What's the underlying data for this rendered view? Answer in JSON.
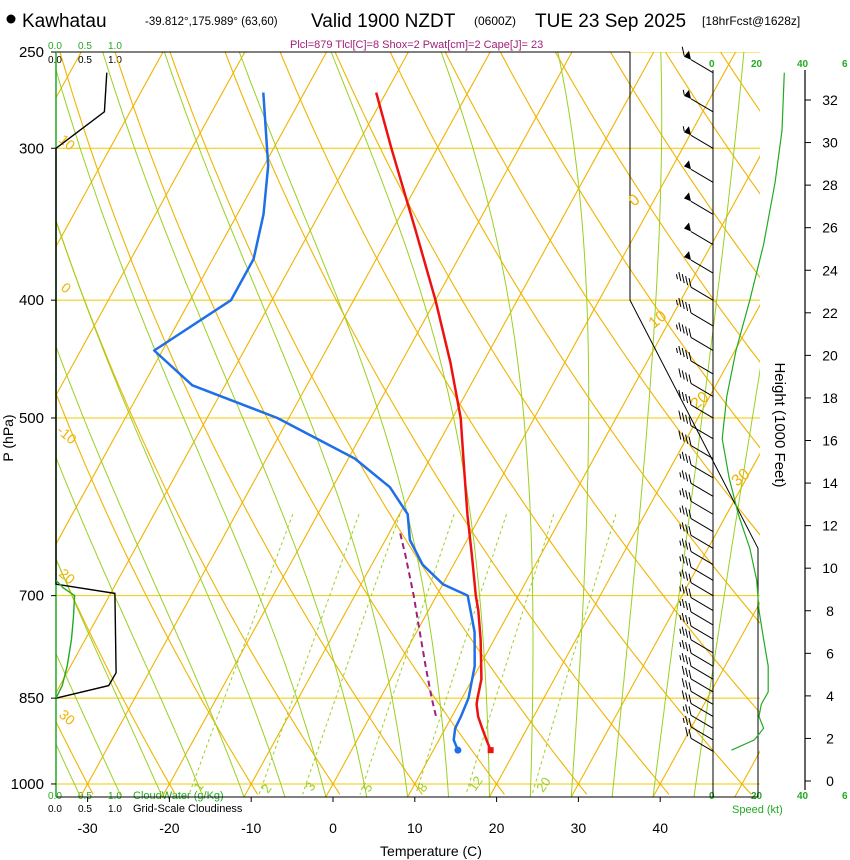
{
  "header": {
    "station": "Kawhatau",
    "coords": "-39.812°,175.989° (63,60)",
    "valid_prefix": "Valid 1900 NZDT",
    "utc": "(0600Z)",
    "date": "TUE 23 Sep 2025",
    "forecast": "[18hrFcst@1628z]",
    "indices": "Plcl=879 Tlcl[C]=8 Shox=2 Pwat[cm]=2 Cape[J]= 23"
  },
  "colors": {
    "temperature": "#ee1111",
    "dewpoint": "#1f6fe8",
    "isotherm": "#f0b400",
    "dry_adiabat": "#f0b400",
    "moist_adiabat": "#9ad022",
    "mixing_ratio": "#9ad022",
    "isobar": "#f0c800",
    "cloudwater": "#22aa22",
    "parcel": "#a0207a"
  },
  "chart_data": {
    "type": "line",
    "title": "Kawhatau Valid 1900 NZDT (0600Z) TUE 23 Sep 2025",
    "xlabel": "Temperature (C)",
    "ylabel": "P (hPa)",
    "y2label": "Height (1000 Feet)",
    "xlim": [
      -35,
      47
    ],
    "ylim": [
      1025,
      250
    ],
    "y_scale": "log",
    "skewed": true,
    "x_ticks": [
      -30,
      -20,
      -10,
      0,
      10,
      20,
      30,
      40
    ],
    "pressure_ticks": [
      250,
      300,
      400,
      500,
      700,
      850,
      1000
    ],
    "height_ticks": [
      0,
      2,
      4,
      6,
      8,
      10,
      12,
      14,
      16,
      18,
      20,
      22,
      24,
      26,
      28,
      30,
      32
    ],
    "height_axis_label_values": [
      "0",
      "2",
      "4",
      "6",
      "8",
      "10",
      "12",
      "14",
      "16",
      "18",
      "20",
      "22",
      "24",
      "26",
      "28",
      "30",
      "32"
    ],
    "isotherm_labels": [
      {
        "text": "0",
        "value": 0
      },
      {
        "text": "10",
        "value": 10
      },
      {
        "text": "20",
        "value": 20
      },
      {
        "text": "30",
        "value": 30
      }
    ],
    "dry_adiabat_labels": [
      {
        "text": "10",
        "value": 10
      },
      {
        "text": "0",
        "value": 0
      },
      {
        "text": "-10",
        "value": -10
      },
      {
        "text": "20",
        "value": 20
      },
      {
        "text": "30",
        "value": 30
      }
    ],
    "mixing_ratio_labels": [
      "1",
      "2",
      "3",
      "5",
      "8",
      "12",
      "20"
    ],
    "series": [
      {
        "name": "Temperature",
        "points": [
          {
            "p": 938,
            "t": 17.0
          },
          {
            "p": 920,
            "t": 15.8
          },
          {
            "p": 900,
            "t": 14.5
          },
          {
            "p": 880,
            "t": 13.2
          },
          {
            "p": 860,
            "t": 12.2
          },
          {
            "p": 850,
            "t": 11.9
          },
          {
            "p": 820,
            "t": 11.1
          },
          {
            "p": 800,
            "t": 10.2
          },
          {
            "p": 760,
            "t": 8.3
          },
          {
            "p": 720,
            "t": 6.1
          },
          {
            "p": 700,
            "t": 4.8
          },
          {
            "p": 650,
            "t": 1.7
          },
          {
            "p": 600,
            "t": -1.7
          },
          {
            "p": 550,
            "t": -5.2
          },
          {
            "p": 500,
            "t": -9.0
          },
          {
            "p": 450,
            "t": -14.0
          },
          {
            "p": 400,
            "t": -20.0
          },
          {
            "p": 350,
            "t": -27.2
          },
          {
            "p": 300,
            "t": -35.6
          },
          {
            "p": 270,
            "t": -41.2
          }
        ]
      },
      {
        "name": "Dewpoint",
        "points": [
          {
            "p": 938,
            "t": 13.0
          },
          {
            "p": 920,
            "t": 11.8
          },
          {
            "p": 900,
            "t": 11.2
          },
          {
            "p": 880,
            "t": 11.1
          },
          {
            "p": 850,
            "t": 10.8
          },
          {
            "p": 800,
            "t": 9.4
          },
          {
            "p": 750,
            "t": 7.1
          },
          {
            "p": 700,
            "t": 3.8
          },
          {
            "p": 685,
            "t": 0.0
          },
          {
            "p": 660,
            "t": -3.8
          },
          {
            "p": 630,
            "t": -7.0
          },
          {
            "p": 600,
            "t": -9.0
          },
          {
            "p": 570,
            "t": -13.0
          },
          {
            "p": 540,
            "t": -19.2
          },
          {
            "p": 500,
            "t": -31.4
          },
          {
            "p": 470,
            "t": -44.0
          },
          {
            "p": 440,
            "t": -51.0
          },
          {
            "p": 400,
            "t": -45.0
          },
          {
            "p": 370,
            "t": -45.0
          },
          {
            "p": 340,
            "t": -46.8
          },
          {
            "p": 310,
            "t": -49.5
          },
          {
            "p": 270,
            "t": -55.0
          }
        ]
      },
      {
        "name": "Parcel",
        "points": [
          {
            "p": 879,
            "t": 8.0
          },
          {
            "p": 850,
            "t": 6.3
          },
          {
            "p": 800,
            "t": 3.4
          },
          {
            "p": 750,
            "t": 0.4
          },
          {
            "p": 700,
            "t": -2.8
          },
          {
            "p": 650,
            "t": -6.4
          },
          {
            "p": 620,
            "t": -8.8
          }
        ]
      }
    ],
    "freezing_envelope": {
      "pressures": [
        400,
        500,
        700,
        850,
        950
      ],
      "x_right": [
        36,
        36,
        40,
        40,
        40
      ]
    },
    "wind_barbs": [
      {
        "p": 260,
        "speed_kt": 60,
        "dir": 290
      },
      {
        "p": 280,
        "speed_kt": 55,
        "dir": 290
      },
      {
        "p": 300,
        "speed_kt": 55,
        "dir": 290
      },
      {
        "p": 320,
        "speed_kt": 50,
        "dir": 290
      },
      {
        "p": 340,
        "speed_kt": 50,
        "dir": 290
      },
      {
        "p": 360,
        "speed_kt": 50,
        "dir": 290
      },
      {
        "p": 380,
        "speed_kt": 50,
        "dir": 290
      },
      {
        "p": 400,
        "speed_kt": 45,
        "dir": 290
      },
      {
        "p": 420,
        "speed_kt": 45,
        "dir": 290
      },
      {
        "p": 440,
        "speed_kt": 45,
        "dir": 290
      },
      {
        "p": 460,
        "speed_kt": 45,
        "dir": 290
      },
      {
        "p": 480,
        "speed_kt": 40,
        "dir": 290
      },
      {
        "p": 500,
        "speed_kt": 40,
        "dir": 290
      },
      {
        "p": 520,
        "speed_kt": 40,
        "dir": 290
      },
      {
        "p": 540,
        "speed_kt": 40,
        "dir": 290
      },
      {
        "p": 560,
        "speed_kt": 35,
        "dir": 290
      },
      {
        "p": 580,
        "speed_kt": 35,
        "dir": 290
      },
      {
        "p": 600,
        "speed_kt": 35,
        "dir": 290
      },
      {
        "p": 620,
        "speed_kt": 35,
        "dir": 290
      },
      {
        "p": 640,
        "speed_kt": 35,
        "dir": 290
      },
      {
        "p": 660,
        "speed_kt": 35,
        "dir": 290
      },
      {
        "p": 680,
        "speed_kt": 35,
        "dir": 290
      },
      {
        "p": 700,
        "speed_kt": 35,
        "dir": 290
      },
      {
        "p": 720,
        "speed_kt": 35,
        "dir": 290
      },
      {
        "p": 740,
        "speed_kt": 35,
        "dir": 290
      },
      {
        "p": 760,
        "speed_kt": 35,
        "dir": 290
      },
      {
        "p": 780,
        "speed_kt": 35,
        "dir": 290
      },
      {
        "p": 800,
        "speed_kt": 35,
        "dir": 290
      },
      {
        "p": 820,
        "speed_kt": 35,
        "dir": 290
      },
      {
        "p": 840,
        "speed_kt": 30,
        "dir": 290
      },
      {
        "p": 860,
        "speed_kt": 30,
        "dir": 290
      },
      {
        "p": 880,
        "speed_kt": 30,
        "dir": 290
      },
      {
        "p": 900,
        "speed_kt": 25,
        "dir": 290
      },
      {
        "p": 920,
        "speed_kt": 25,
        "dir": 290
      },
      {
        "p": 940,
        "speed_kt": 20,
        "dir": 290
      }
    ],
    "speed_profile": [
      {
        "p": 938,
        "speed_kt": 8
      },
      {
        "p": 920,
        "speed_kt": 18
      },
      {
        "p": 900,
        "speed_kt": 22
      },
      {
        "p": 880,
        "speed_kt": 20
      },
      {
        "p": 860,
        "speed_kt": 21
      },
      {
        "p": 840,
        "speed_kt": 24
      },
      {
        "p": 800,
        "speed_kt": 24
      },
      {
        "p": 760,
        "speed_kt": 22
      },
      {
        "p": 720,
        "speed_kt": 20
      },
      {
        "p": 680,
        "speed_kt": 19
      },
      {
        "p": 640,
        "speed_kt": 16
      },
      {
        "p": 600,
        "speed_kt": 11
      },
      {
        "p": 560,
        "speed_kt": 7
      },
      {
        "p": 520,
        "speed_kt": 4
      },
      {
        "p": 480,
        "speed_kt": 6
      },
      {
        "p": 440,
        "speed_kt": 10
      },
      {
        "p": 400,
        "speed_kt": 16
      },
      {
        "p": 360,
        "speed_kt": 22
      },
      {
        "p": 320,
        "speed_kt": 27
      },
      {
        "p": 290,
        "speed_kt": 30
      },
      {
        "p": 260,
        "speed_kt": 31
      }
    ],
    "cloudiness_profile": [
      {
        "p": 260,
        "value": 0.82
      },
      {
        "p": 280,
        "value": 0.78
      },
      {
        "p": 300,
        "value": 0.0
      },
      {
        "p": 685,
        "value": 0.0
      },
      {
        "p": 697,
        "value": 0.95
      },
      {
        "p": 810,
        "value": 0.97
      },
      {
        "p": 830,
        "value": 0.85
      },
      {
        "p": 850,
        "value": 0.0
      }
    ],
    "cloudwater_profile": [
      {
        "p": 680,
        "value": 0.0
      },
      {
        "p": 690,
        "value": 0.12
      },
      {
        "p": 700,
        "value": 0.3
      },
      {
        "p": 730,
        "value": 0.28
      },
      {
        "p": 760,
        "value": 0.25
      },
      {
        "p": 800,
        "value": 0.18
      },
      {
        "p": 830,
        "value": 0.1
      },
      {
        "p": 850,
        "value": 0.0
      }
    ]
  },
  "axes": {
    "cloud_top_scale": [
      "0.0",
      "0.5",
      "1.0"
    ],
    "cloud_top_scale_green": [
      "0.0",
      "0.5",
      "1.0"
    ],
    "cloud_bottom_green": [
      "0.0",
      "0.5",
      "1.0"
    ],
    "cloud_bottom_black": [
      "0.0",
      "0.5",
      "1.0"
    ],
    "cloudwater_label": "CloudWater (g/Kg)",
    "cloudiness_label": "Grid-Scale Cloudiness",
    "speed_ticks": [
      "0",
      "20",
      "40",
      "6"
    ],
    "speed_label": "Speed (kt)"
  }
}
